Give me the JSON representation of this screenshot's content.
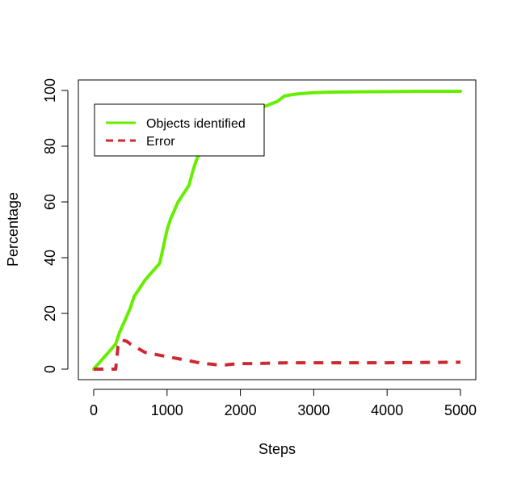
{
  "chart_data": {
    "type": "line",
    "title": "",
    "xlabel": "Steps",
    "ylabel": "Percentage",
    "xlim": [
      0,
      5000
    ],
    "ylim": [
      0,
      100
    ],
    "x_ticks": [
      "0",
      "1000",
      "2000",
      "3000",
      "4000",
      "5000"
    ],
    "y_ticks": [
      "0",
      "20",
      "40",
      "60",
      "80",
      "100"
    ],
    "legend_position": "top-left",
    "grid": false,
    "series": [
      {
        "name": "Objects identified",
        "color": "#66ee00",
        "style": "solid",
        "x": [
          0,
          100,
          200,
          300,
          350,
          400,
          450,
          500,
          550,
          600,
          700,
          800,
          900,
          950,
          1000,
          1050,
          1100,
          1150,
          1200,
          1250,
          1300,
          1350,
          1400,
          1450,
          1500,
          1600,
          1700,
          1800,
          1900,
          2000,
          2100,
          2200,
          2300,
          2400,
          2500,
          2550,
          2600,
          2700,
          2800,
          2900,
          3000,
          3200,
          3500,
          4000,
          4500,
          5000
        ],
        "y": [
          0,
          3,
          6,
          9,
          13,
          16,
          19,
          22,
          26,
          28,
          32,
          35,
          38,
          44,
          50,
          54,
          57,
          60,
          62,
          64,
          66,
          71,
          75,
          78,
          80,
          83,
          85,
          88,
          90,
          91,
          92,
          93,
          94,
          95,
          96,
          97,
          98,
          98.5,
          98.8,
          99,
          99.2,
          99.4,
          99.5,
          99.6,
          99.7,
          99.7
        ]
      },
      {
        "name": "Error",
        "color": "#cc2a30",
        "style": "dashed",
        "x": [
          0,
          100,
          200,
          300,
          330,
          380,
          450,
          500,
          600,
          700,
          800,
          900,
          1000,
          1100,
          1200,
          1300,
          1400,
          1500,
          1600,
          1700,
          1800,
          1900,
          2000,
          2200,
          2500,
          2700,
          3000,
          3500,
          4000,
          4500,
          5000
        ],
        "y": [
          0,
          0,
          0,
          0,
          8,
          10.5,
          10,
          9,
          7.5,
          6,
          5.5,
          5,
          4.5,
          4,
          3.5,
          3,
          2.5,
          2,
          1.8,
          1.5,
          1.5,
          1.8,
          2,
          2,
          2.2,
          2.3,
          2.3,
          2.3,
          2.3,
          2.4,
          2.5
        ]
      }
    ]
  }
}
